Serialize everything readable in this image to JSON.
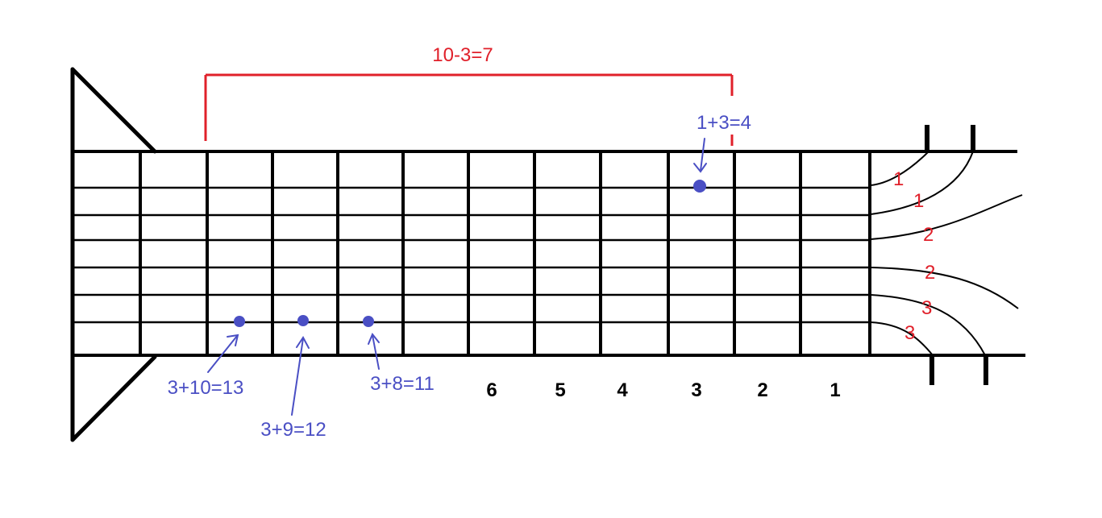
{
  "colors": {
    "line": "#000000",
    "red": "#e0202a",
    "blue": "#4a4fc4"
  },
  "bracket_label": "10-3=7",
  "string_numbers": [
    "1",
    "1",
    "2",
    "2",
    "3",
    "3"
  ],
  "fret_numbers": [
    "6",
    "5",
    "4",
    "3",
    "2",
    "1"
  ],
  "dot_labels": [
    "1+3=4",
    "3+10=13",
    "3+9=12",
    "3+8=11"
  ]
}
